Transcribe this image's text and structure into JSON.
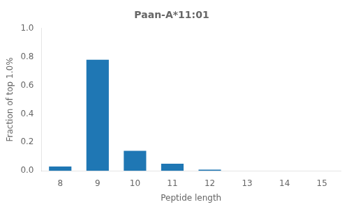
{
  "chart_data": {
    "type": "bar",
    "title": "Paan-A*11:01",
    "xlabel": "Peptide length",
    "ylabel": "Fraction of top 1.0%",
    "categories": [
      8,
      9,
      10,
      11,
      12,
      13,
      14,
      15
    ],
    "values": [
      0.03,
      0.78,
      0.14,
      0.05,
      0.008,
      0.0,
      0.0,
      0.0
    ],
    "color": "#1f77b4",
    "ylim": [
      0.0,
      1.0
    ],
    "yticks": [
      {
        "value": 0.0,
        "label": "0.0"
      },
      0.2,
      0.4,
      0.6,
      0.8,
      {
        "value": 1.0,
        "label": "1.0"
      }
    ],
    "grid": false
  }
}
